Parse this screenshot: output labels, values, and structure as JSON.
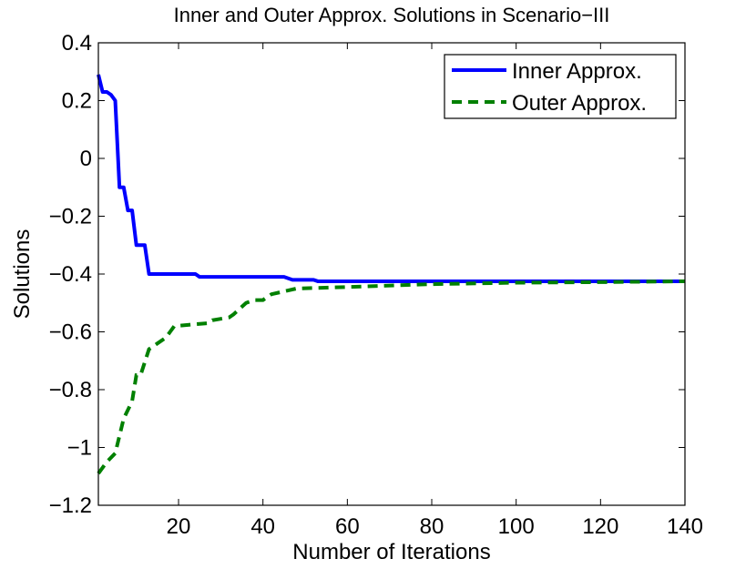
{
  "chart_data": {
    "type": "line",
    "title": "Inner and Outer Approx. Solutions in Scenario−III",
    "xlabel": "Number of Iterations",
    "ylabel": "Solutions",
    "xlim": [
      1,
      140
    ],
    "ylim": [
      -1.2,
      0.4
    ],
    "xticks": [
      20,
      40,
      60,
      80,
      100,
      120,
      140
    ],
    "yticks": [
      0.4,
      0.2,
      0,
      -0.2,
      -0.4,
      -0.6,
      -0.8,
      -1,
      -1.2
    ],
    "xtick_labels": [
      "20",
      "40",
      "60",
      "80",
      "100",
      "120",
      "140"
    ],
    "ytick_labels": [
      "0.4",
      "0.2",
      "0",
      "−0.2",
      "−0.4",
      "−0.6",
      "−0.8",
      "−1",
      "−1.2"
    ],
    "grid": false,
    "legend_position": "top-right",
    "series": [
      {
        "name": "Inner Approx.",
        "color": "#0000ff",
        "style": "solid",
        "points": [
          [
            1,
            0.29
          ],
          [
            2,
            0.23
          ],
          [
            3,
            0.23
          ],
          [
            4,
            0.22
          ],
          [
            5,
            0.2
          ],
          [
            6,
            -0.1
          ],
          [
            7,
            -0.1
          ],
          [
            8,
            -0.18
          ],
          [
            9,
            -0.18
          ],
          [
            10,
            -0.3
          ],
          [
            12,
            -0.3
          ],
          [
            13,
            -0.4
          ],
          [
            24,
            -0.4
          ],
          [
            25,
            -0.41
          ],
          [
            45,
            -0.41
          ],
          [
            47,
            -0.42
          ],
          [
            52,
            -0.42
          ],
          [
            53,
            -0.425
          ],
          [
            140,
            -0.425
          ]
        ]
      },
      {
        "name": "Outer Approx.",
        "color": "#008000",
        "style": "dashed",
        "points": [
          [
            1,
            -1.09
          ],
          [
            3,
            -1.05
          ],
          [
            5,
            -1.02
          ],
          [
            7,
            -0.9
          ],
          [
            9,
            -0.84
          ],
          [
            10,
            -0.75
          ],
          [
            11,
            -0.75
          ],
          [
            13,
            -0.66
          ],
          [
            15,
            -0.64
          ],
          [
            17,
            -0.62
          ],
          [
            18,
            -0.6
          ],
          [
            19,
            -0.58
          ],
          [
            27,
            -0.57
          ],
          [
            28,
            -0.56
          ],
          [
            32,
            -0.55
          ],
          [
            33,
            -0.54
          ],
          [
            36,
            -0.5
          ],
          [
            38,
            -0.49
          ],
          [
            40,
            -0.49
          ],
          [
            42,
            -0.47
          ],
          [
            45,
            -0.46
          ],
          [
            48,
            -0.45
          ],
          [
            60,
            -0.445
          ],
          [
            80,
            -0.435
          ],
          [
            100,
            -0.43
          ],
          [
            120,
            -0.428
          ],
          [
            140,
            -0.425
          ]
        ]
      }
    ]
  }
}
